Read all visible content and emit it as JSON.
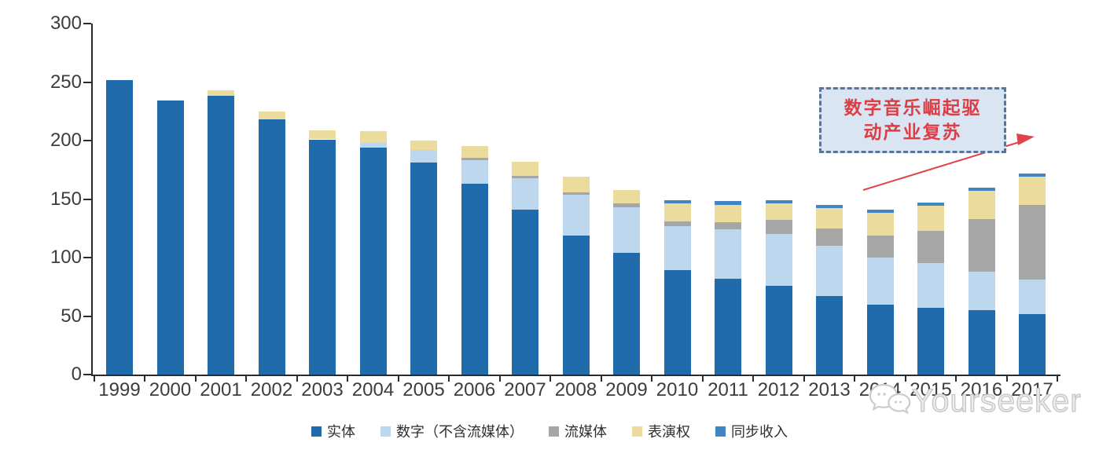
{
  "chart_data": {
    "type": "bar",
    "stacked": true,
    "title": "",
    "xlabel": "",
    "ylabel": "",
    "ylim": [
      0,
      300
    ],
    "yticks": [
      0,
      50,
      100,
      150,
      200,
      250,
      300
    ],
    "grid": false,
    "legend_position": "bottom",
    "categories": [
      "1999",
      "2000",
      "2001",
      "2002",
      "2003",
      "2004",
      "2005",
      "2006",
      "2007",
      "2008",
      "2009",
      "2010",
      "2011",
      "2012",
      "2013",
      "2014",
      "2015",
      "2016",
      "2017"
    ],
    "series": [
      {
        "name": "实体",
        "color": "#1f6bac",
        "values": [
          252,
          234,
          238,
          218,
          201,
          194,
          181,
          163,
          141,
          119,
          104,
          89,
          82,
          76,
          67,
          60,
          57,
          55,
          52
        ]
      },
      {
        "name": "数字（不含流媒体）",
        "color": "#bdd7ee",
        "values": [
          0,
          0,
          0,
          0,
          0,
          4,
          11,
          20,
          27,
          35,
          39,
          38,
          42,
          44,
          43,
          40,
          38,
          33,
          29
        ]
      },
      {
        "name": "流媒体",
        "color": "#a6a6a6",
        "values": [
          0,
          0,
          0,
          0,
          0,
          0,
          0,
          2,
          2,
          2,
          3,
          4,
          6,
          12,
          15,
          19,
          28,
          45,
          64
        ]
      },
      {
        "name": "表演权",
        "color": "#ebdc9e",
        "values": [
          0,
          0,
          5,
          7,
          8,
          10,
          8,
          10,
          12,
          13,
          12,
          15,
          15,
          14,
          17,
          19,
          21,
          24,
          24
        ]
      },
      {
        "name": "同步收入",
        "color": "#4186c2",
        "values": [
          0,
          0,
          0,
          0,
          0,
          0,
          0,
          0,
          0,
          0,
          0,
          3,
          3,
          3,
          3,
          3,
          3,
          3,
          3
        ]
      }
    ],
    "annotation": {
      "line1": "数字音乐崛起驱",
      "line2": "动产业复苏",
      "text_color": "#dc3e45",
      "box_fill": "#d9e5f2",
      "box_border": "#5a7596",
      "arrow_color": "#e0434b"
    }
  },
  "watermark": {
    "text": "Yourseeker"
  }
}
